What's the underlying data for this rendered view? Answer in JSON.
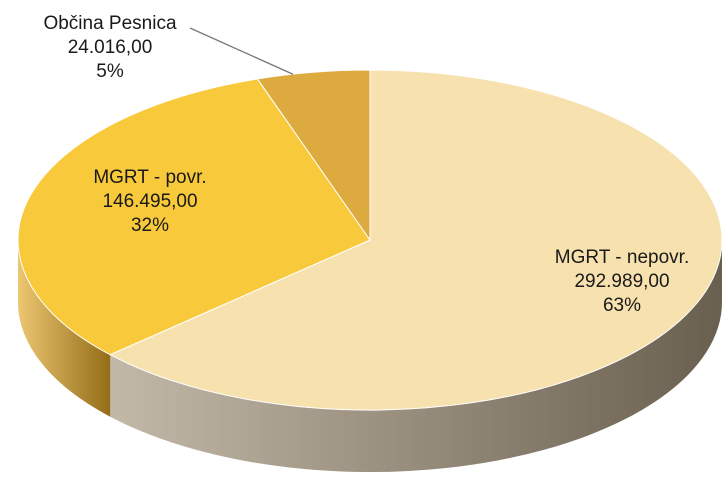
{
  "chart_data": {
    "type": "pie",
    "categories": [
      "MGRT - nepovr.",
      "MGRT - povr.",
      "Občina Pesnica"
    ],
    "values": [
      292989,
      146495,
      24016
    ],
    "value_labels": [
      "292.989,00",
      "146.495,00",
      "24.016,00"
    ],
    "percent_labels": [
      "63%",
      "32%",
      "5%"
    ],
    "colors": [
      "#f7e1ae",
      "#f8c93a",
      "#ddaa40"
    ],
    "side_colors": [
      "#a3937a",
      "#e2a724",
      "#c59230"
    ]
  }
}
